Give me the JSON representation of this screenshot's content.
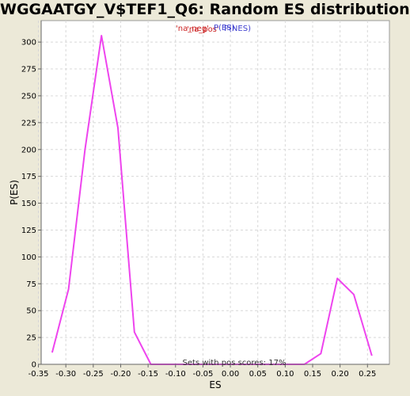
{
  "chart_data": {
    "type": "line",
    "title": "WGGAATGY_V$TEF1_Q6: Random ES distribution",
    "xlabel": "ES",
    "ylabel": "P(ES)",
    "xlim": [
      -0.345,
      0.29
    ],
    "ylim": [
      0,
      320
    ],
    "xticks": [
      -0.35,
      -0.3,
      -0.25,
      -0.2,
      -0.15,
      -0.1,
      -0.05,
      0.0,
      0.05,
      0.1,
      0.15,
      0.2,
      0.25
    ],
    "xtick_labels": [
      "-0.35",
      "-0.30",
      "-0.25",
      "-0.20",
      "-0.15",
      "-0.10",
      "-0.05",
      "0.00",
      "0.05",
      "0.10",
      "0.15",
      "0.20",
      "0.25"
    ],
    "yticks": [
      0,
      25,
      50,
      75,
      100,
      125,
      150,
      175,
      200,
      225,
      250,
      275,
      300
    ],
    "grid": true,
    "legend": {
      "placement": "top-center",
      "entries": [
        {
          "label": "'na_neg'",
          "color": "#cc2222"
        },
        {
          "label": "'na_pos'",
          "color": "#cc2222"
        },
        {
          "label": "P(ES)",
          "color": "#4040d0"
        },
        {
          "label": "P(NES)",
          "color": "#4040d0"
        }
      ]
    },
    "annotation": "Sets with pos scores: 17%",
    "series": [
      {
        "color": "#ee44ee",
        "x": [
          -0.325,
          -0.295,
          -0.265,
          -0.235,
          -0.205,
          -0.175,
          -0.145,
          -0.115,
          -0.085,
          -0.055,
          -0.025,
          0.005,
          0.035,
          0.065,
          0.095,
          0.135,
          0.165,
          0.195,
          0.225,
          0.258
        ],
        "y": [
          11,
          70,
          200,
          306,
          220,
          30,
          0,
          0,
          0,
          0,
          0,
          0,
          0,
          0,
          0,
          0,
          10,
          80,
          65,
          8
        ]
      }
    ]
  }
}
